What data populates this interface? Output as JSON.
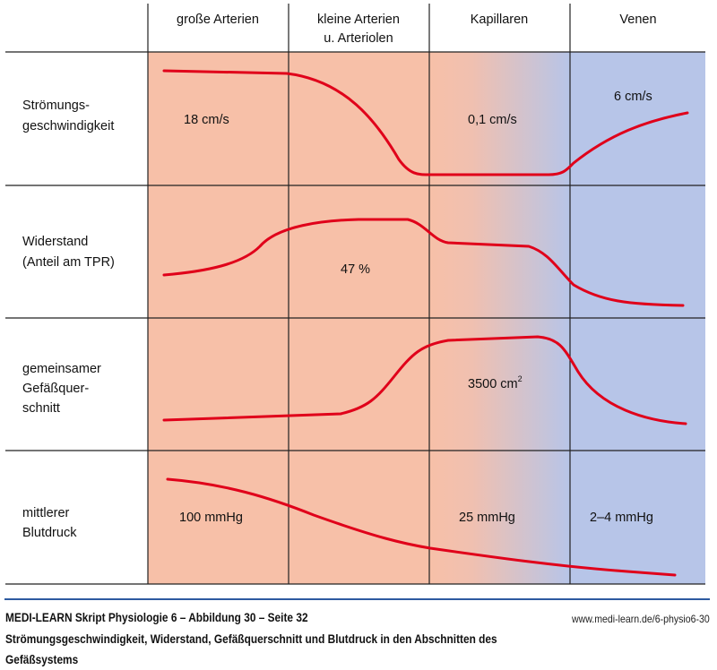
{
  "header": {
    "columns": [
      {
        "lines": [
          "große Arterien"
        ]
      },
      {
        "lines": [
          "kleine Arterien",
          "u. Arteriolen"
        ]
      },
      {
        "lines": [
          "Kapillaren"
        ]
      },
      {
        "lines": [
          "Venen"
        ]
      }
    ]
  },
  "rows": [
    {
      "label_lines": [
        "Strömungs-",
        "geschwindigkeit"
      ],
      "values": [
        "18 cm/s",
        "0,1 cm/s",
        "6 cm/s"
      ]
    },
    {
      "label_lines": [
        "Widerstand",
        "(Anteil am TPR)"
      ],
      "values": [
        "47 %"
      ]
    },
    {
      "label_lines": [
        "gemeinsamer",
        "Gefäßquer-",
        "schnitt"
      ],
      "values": [
        "3500 cm",
        "2"
      ]
    },
    {
      "label_lines": [
        "mittlerer",
        "Blutdruck"
      ],
      "values": [
        "100 mmHg",
        "25 mmHg",
        "2–4 mmHg"
      ]
    }
  ],
  "colors": {
    "arterial": "#f7c0a8",
    "venous": "#b7c5e8",
    "curve": "#e0001a",
    "rule": "#2d5aa0"
  },
  "footer": {
    "source": "MEDI-LEARN Skript Physiologie 6 – Abbildung 30 – Seite 32",
    "url": "www.medi-learn.de/6-physio6-30",
    "caption_line1": "Strömungsgeschwindigkeit, Widerstand, Gefäßquerschnitt und Blutdruck in den Abschnitten des",
    "caption_line2": "Gefäßsystems"
  }
}
